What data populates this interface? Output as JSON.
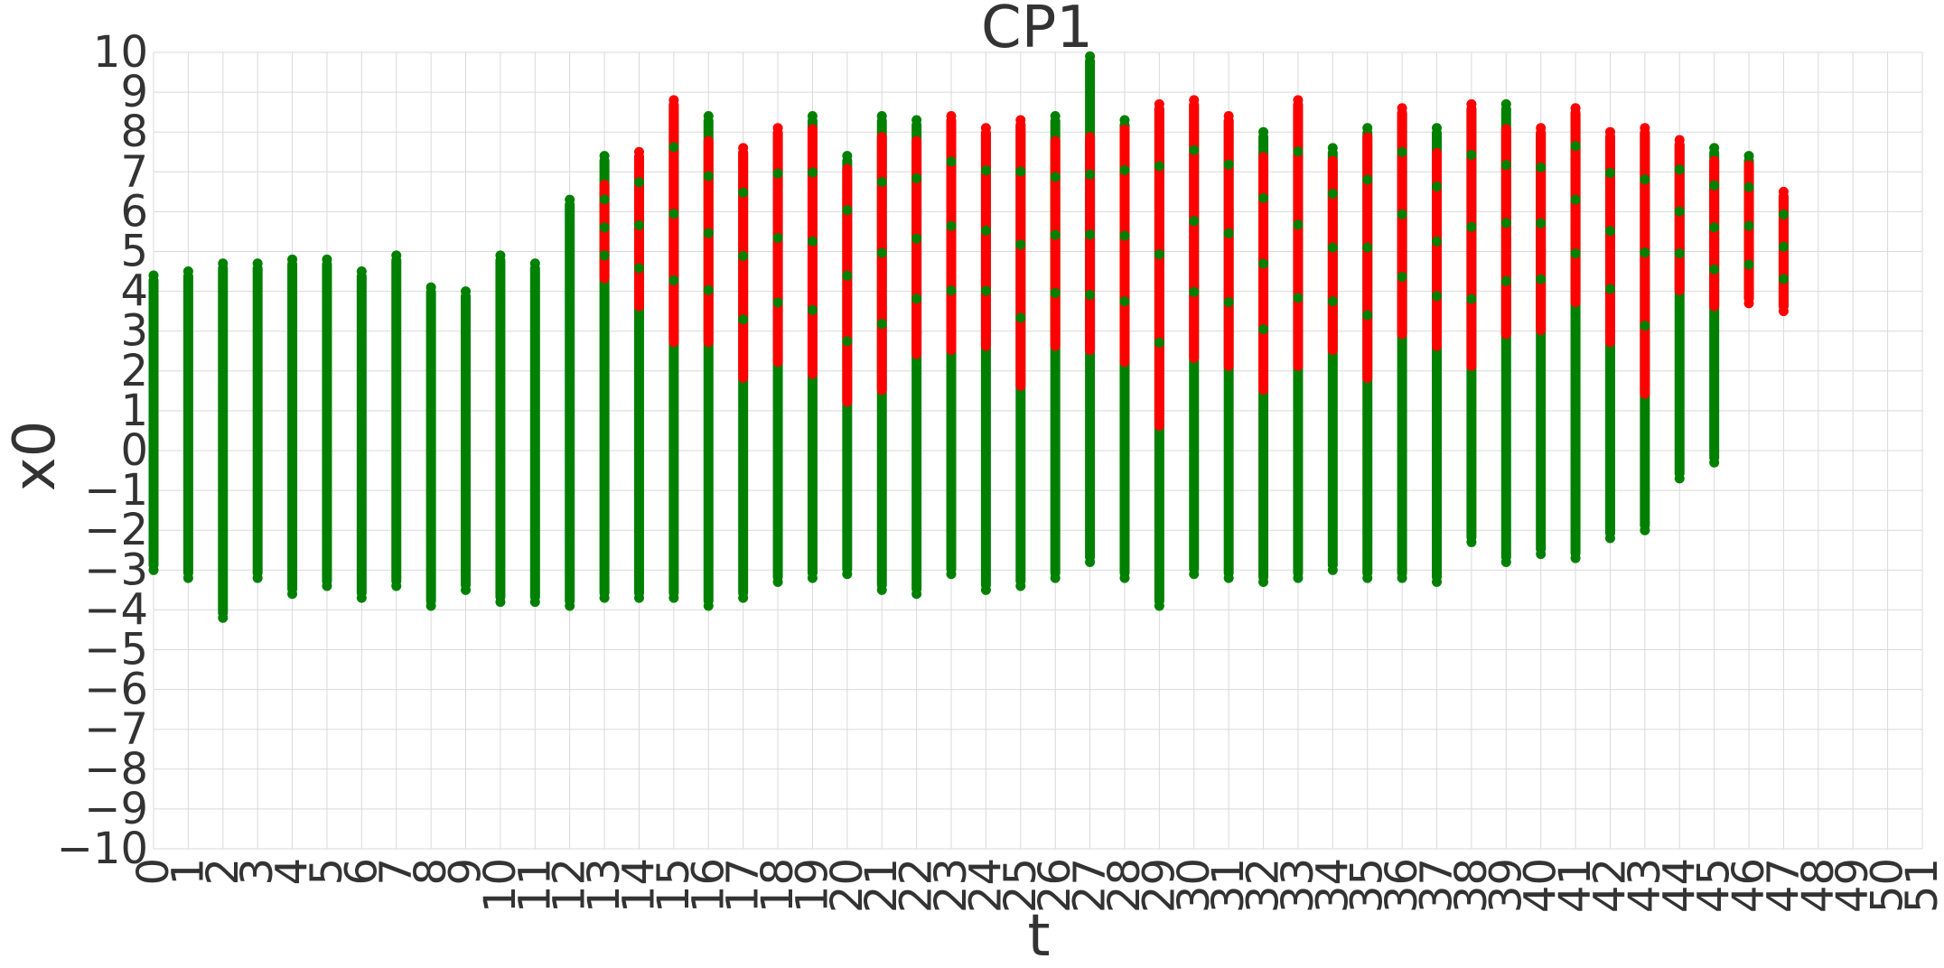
{
  "chart_data": {
    "type": "scatter",
    "title": "CP1",
    "xlabel": "t",
    "ylabel": "x0",
    "xlim": [
      0,
      51
    ],
    "ylim": [
      -10,
      10
    ],
    "x_ticks": [
      "0",
      "1",
      "2",
      "3",
      "4",
      "5",
      "6",
      "7",
      "8",
      "9",
      "10",
      "11",
      "12",
      "13",
      "14",
      "15",
      "16",
      "17",
      "18",
      "19",
      "20",
      "21",
      "22",
      "23",
      "24",
      "25",
      "26",
      "27",
      "28",
      "29",
      "30",
      "31",
      "32",
      "33",
      "34",
      "35",
      "36",
      "37",
      "38",
      "39",
      "40",
      "41",
      "42",
      "43",
      "44",
      "45",
      "46",
      "47",
      "48",
      "49",
      "50",
      "51"
    ],
    "y_ticks": [
      "−10",
      "−9",
      "−8",
      "−7",
      "−6",
      "−5",
      "−4",
      "−3",
      "−2",
      "−1",
      "0",
      "1",
      "2",
      "3",
      "4",
      "5",
      "6",
      "7",
      "8",
      "9",
      "10"
    ],
    "y_tick_values": [
      -10,
      -9,
      -8,
      -7,
      -6,
      -5,
      -4,
      -3,
      -2,
      -1,
      0,
      1,
      2,
      3,
      4,
      5,
      6,
      7,
      8,
      9,
      10
    ],
    "grid": true,
    "legend": "none",
    "colors": {
      "green_series": "#008000",
      "red_series": "#ff0000",
      "grid": "#d9d9d9",
      "text": "#333333"
    },
    "columns": [
      {
        "t": 0,
        "min": -3.0,
        "max": 4.4,
        "red_min": null,
        "red_max": null
      },
      {
        "t": 1,
        "min": -3.2,
        "max": 4.5,
        "red_min": null,
        "red_max": null
      },
      {
        "t": 2,
        "min": -4.2,
        "max": 4.7,
        "red_min": null,
        "red_max": null
      },
      {
        "t": 3,
        "min": -3.2,
        "max": 4.7,
        "red_min": null,
        "red_max": null
      },
      {
        "t": 4,
        "min": -3.6,
        "max": 4.8,
        "red_min": null,
        "red_max": null
      },
      {
        "t": 5,
        "min": -3.4,
        "max": 4.8,
        "red_min": null,
        "red_max": null
      },
      {
        "t": 6,
        "min": -3.7,
        "max": 4.5,
        "red_min": null,
        "red_max": null
      },
      {
        "t": 7,
        "min": -3.4,
        "max": 4.9,
        "red_min": null,
        "red_max": null
      },
      {
        "t": 8,
        "min": -3.9,
        "max": 4.1,
        "red_min": null,
        "red_max": null
      },
      {
        "t": 9,
        "min": -3.5,
        "max": 4.0,
        "red_min": null,
        "red_max": null
      },
      {
        "t": 10,
        "min": -3.8,
        "max": 4.9,
        "red_min": null,
        "red_max": null
      },
      {
        "t": 11,
        "min": -3.8,
        "max": 4.7,
        "red_min": null,
        "red_max": null
      },
      {
        "t": 12,
        "min": -3.9,
        "max": 6.3,
        "red_min": null,
        "red_max": null
      },
      {
        "t": 13,
        "min": -3.7,
        "max": 7.4,
        "red_min": 4.2,
        "red_max": 6.8
      },
      {
        "t": 14,
        "min": -3.7,
        "max": 7.5,
        "red_min": 3.5,
        "red_max": 7.5
      },
      {
        "t": 15,
        "min": -3.7,
        "max": 8.8,
        "red_min": 2.6,
        "red_max": 8.8
      },
      {
        "t": 16,
        "min": -3.9,
        "max": 8.4,
        "red_min": 2.6,
        "red_max": 7.9
      },
      {
        "t": 17,
        "min": -3.7,
        "max": 7.6,
        "red_min": 1.7,
        "red_max": 7.6
      },
      {
        "t": 18,
        "min": -3.3,
        "max": 8.1,
        "red_min": 2.1,
        "red_max": 8.1
      },
      {
        "t": 19,
        "min": -3.2,
        "max": 8.4,
        "red_min": 1.8,
        "red_max": 8.2
      },
      {
        "t": 20,
        "min": -3.1,
        "max": 7.4,
        "red_min": 1.1,
        "red_max": 7.2
      },
      {
        "t": 21,
        "min": -3.5,
        "max": 8.4,
        "red_min": 1.4,
        "red_max": 8.0
      },
      {
        "t": 22,
        "min": -3.6,
        "max": 8.3,
        "red_min": 2.3,
        "red_max": 7.9
      },
      {
        "t": 23,
        "min": -3.1,
        "max": 8.4,
        "red_min": 2.4,
        "red_max": 8.4
      },
      {
        "t": 24,
        "min": -3.5,
        "max": 8.1,
        "red_min": 2.5,
        "red_max": 8.1
      },
      {
        "t": 25,
        "min": -3.4,
        "max": 8.3,
        "red_min": 1.5,
        "red_max": 8.3
      },
      {
        "t": 26,
        "min": -3.2,
        "max": 8.4,
        "red_min": 2.5,
        "red_max": 7.9
      },
      {
        "t": 27,
        "min": -2.8,
        "max": 9.9,
        "red_min": 2.4,
        "red_max": 8.0
      },
      {
        "t": 28,
        "min": -3.2,
        "max": 8.3,
        "red_min": 2.1,
        "red_max": 8.2
      },
      {
        "t": 29,
        "min": -3.9,
        "max": 8.7,
        "red_min": 0.5,
        "red_max": 8.7
      },
      {
        "t": 30,
        "min": -3.1,
        "max": 8.8,
        "red_min": 2.2,
        "red_max": 8.8
      },
      {
        "t": 31,
        "min": -3.2,
        "max": 8.4,
        "red_min": 2.0,
        "red_max": 8.4
      },
      {
        "t": 32,
        "min": -3.3,
        "max": 8.0,
        "red_min": 1.4,
        "red_max": 7.5
      },
      {
        "t": 33,
        "min": -3.2,
        "max": 8.8,
        "red_min": 2.0,
        "red_max": 8.8
      },
      {
        "t": 34,
        "min": -3.0,
        "max": 7.6,
        "red_min": 2.4,
        "red_max": 7.4
      },
      {
        "t": 35,
        "min": -3.2,
        "max": 8.1,
        "red_min": 1.7,
        "red_max": 8.0
      },
      {
        "t": 36,
        "min": -3.2,
        "max": 8.6,
        "red_min": 2.8,
        "red_max": 8.6
      },
      {
        "t": 37,
        "min": -3.3,
        "max": 8.1,
        "red_min": 2.5,
        "red_max": 7.6
      },
      {
        "t": 38,
        "min": -2.3,
        "max": 8.7,
        "red_min": 2.0,
        "red_max": 8.7
      },
      {
        "t": 39,
        "min": -2.8,
        "max": 8.7,
        "red_min": 2.8,
        "red_max": 8.2
      },
      {
        "t": 40,
        "min": -2.6,
        "max": 8.1,
        "red_min": 2.9,
        "red_max": 8.1
      },
      {
        "t": 41,
        "min": -2.7,
        "max": 8.6,
        "red_min": 3.6,
        "red_max": 8.6
      },
      {
        "t": 42,
        "min": -2.2,
        "max": 8.0,
        "red_min": 2.6,
        "red_max": 8.0
      },
      {
        "t": 43,
        "min": -2.0,
        "max": 8.1,
        "red_min": 1.3,
        "red_max": 8.1
      },
      {
        "t": 44,
        "min": -0.7,
        "max": 7.8,
        "red_min": 3.9,
        "red_max": 7.8
      },
      {
        "t": 45,
        "min": -0.3,
        "max": 7.6,
        "red_min": 3.5,
        "red_max": 7.4
      },
      {
        "t": 46,
        "min": 3.7,
        "max": 7.4,
        "red_min": 3.7,
        "red_max": 7.3
      },
      {
        "t": 47,
        "min": 3.5,
        "max": 6.5,
        "red_min": 3.5,
        "red_max": 6.5
      }
    ]
  }
}
